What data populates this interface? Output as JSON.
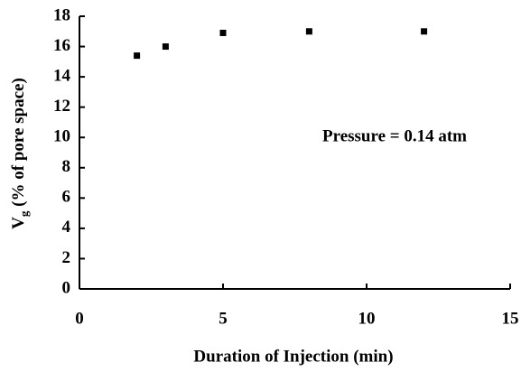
{
  "chart_data": {
    "type": "scatter",
    "xlabel": "Duration of Injection  (min)",
    "ylabel": {
      "main": "V",
      "subscript": "g",
      "rest": " (% of pore space)"
    },
    "annotation": "Pressure = 0.14 atm",
    "series": [
      {
        "color": "#000000",
        "x": [
          2,
          3,
          5,
          8,
          12
        ],
        "values": [
          15.4,
          16.0,
          16.9,
          17.0,
          17.0
        ]
      }
    ],
    "xlim": [
      0,
      15
    ],
    "xticks": [
      0,
      5,
      10,
      15
    ],
    "ylim": [
      0,
      18
    ],
    "yticks": [
      0,
      2,
      4,
      6,
      8,
      10,
      12,
      14,
      16,
      18
    ],
    "grid": false
  }
}
